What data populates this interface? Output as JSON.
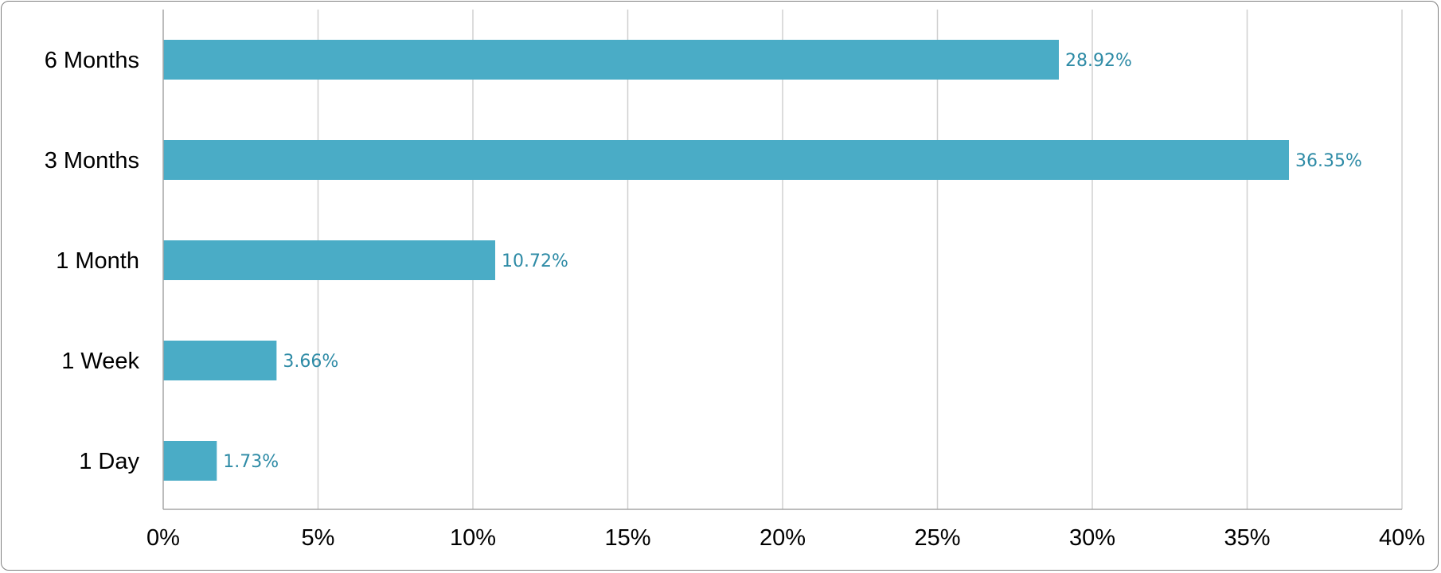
{
  "chart_data": {
    "type": "bar",
    "orientation": "horizontal",
    "categories": [
      "6 Months",
      "3 Months",
      "1 Month",
      "1 Week",
      "1 Day"
    ],
    "values": [
      28.92,
      36.35,
      10.72,
      3.66,
      1.73
    ],
    "data_labels": [
      "28.92%",
      "36.35%",
      "10.72%",
      "3.66%",
      "1.73%"
    ],
    "x_ticks": [
      "0%",
      "5%",
      "10%",
      "15%",
      "20%",
      "25%",
      "30%",
      "35%",
      "40%"
    ],
    "xlim": [
      0,
      40
    ],
    "grid": true,
    "legend": "none",
    "title": "",
    "xlabel": "",
    "ylabel": "",
    "colors": {
      "bar": "#4aacc6",
      "label": "#2e8ba6",
      "grid": "#d0d0d0"
    }
  }
}
